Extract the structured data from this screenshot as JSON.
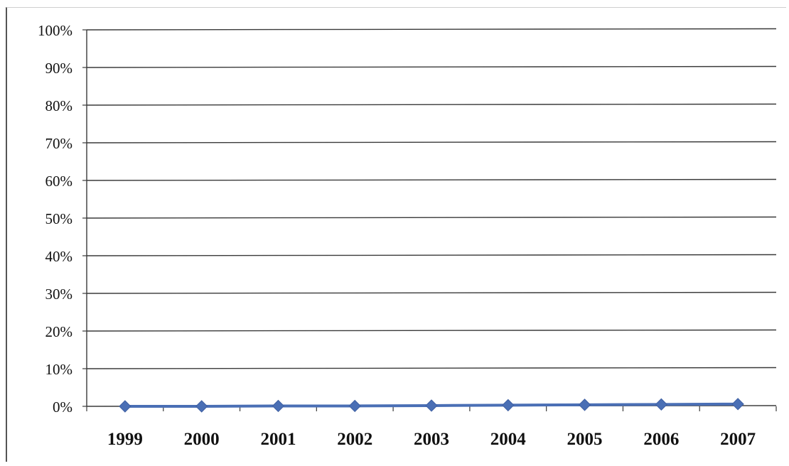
{
  "chart_data": {
    "type": "line",
    "title": "",
    "xlabel": "",
    "ylabel": "",
    "categories": [
      "1999",
      "2000",
      "2001",
      "2002",
      "2003",
      "2004",
      "2005",
      "2006",
      "2007"
    ],
    "series": [
      {
        "values": [
          0.0,
          0.0,
          0.1,
          0.1,
          0.2,
          0.3,
          0.4,
          0.5,
          0.6
        ],
        "color": "#4a6fb5",
        "marker": "diamond"
      }
    ],
    "ylim": [
      0,
      100
    ],
    "yticks": [
      "0%",
      "10%",
      "20%",
      "30%",
      "40%",
      "50%",
      "60%",
      "70%",
      "80%",
      "90%",
      "100%"
    ],
    "ytick_values": [
      0,
      10,
      20,
      30,
      40,
      50,
      60,
      70,
      80,
      90,
      100
    ],
    "grid": true,
    "legend": "none",
    "gridline_color": "#3a3a3a",
    "axis_color": "#3a3a3a",
    "tick_text_color": "#111111"
  }
}
